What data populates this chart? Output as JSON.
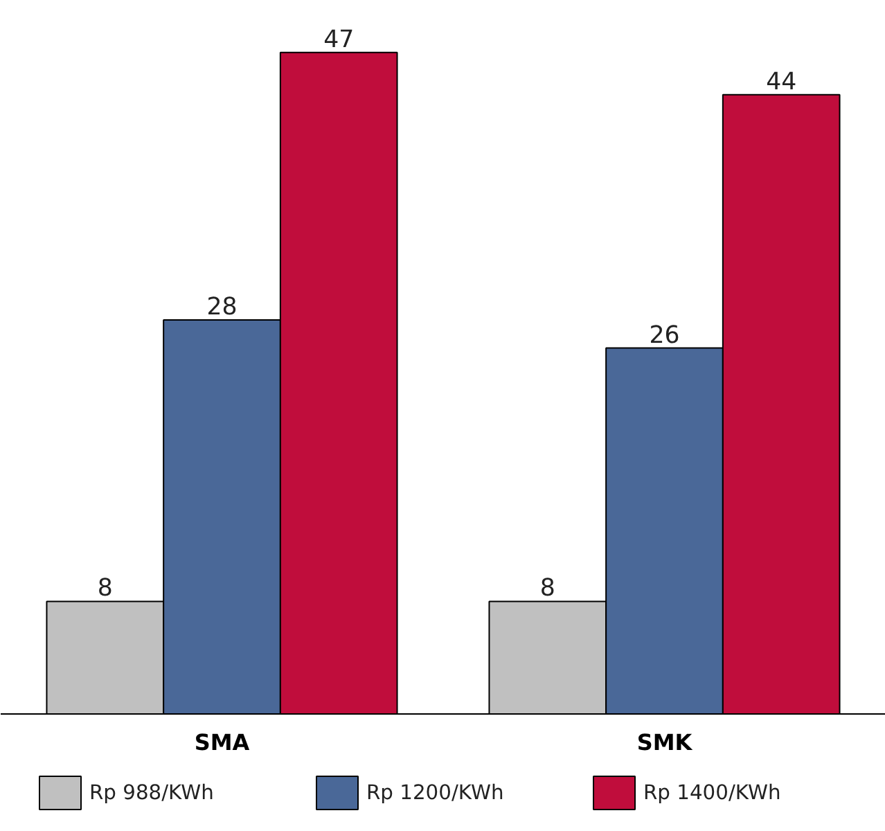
{
  "chart_data": {
    "type": "bar",
    "categories": [
      "SMA",
      "SMK"
    ],
    "series": [
      {
        "name": "Rp 988/KWh",
        "color": "#c0c0c0",
        "values": [
          8,
          8
        ]
      },
      {
        "name": "Rp 1200/KWh",
        "color": "#4a6898",
        "values": [
          28,
          26
        ]
      },
      {
        "name": "Rp 1400/KWh",
        "color": "#c00d3c",
        "values": [
          47,
          44
        ]
      }
    ],
    "data_labels": true,
    "legend": "bottom",
    "grid": false,
    "tick_labels": "x"
  }
}
